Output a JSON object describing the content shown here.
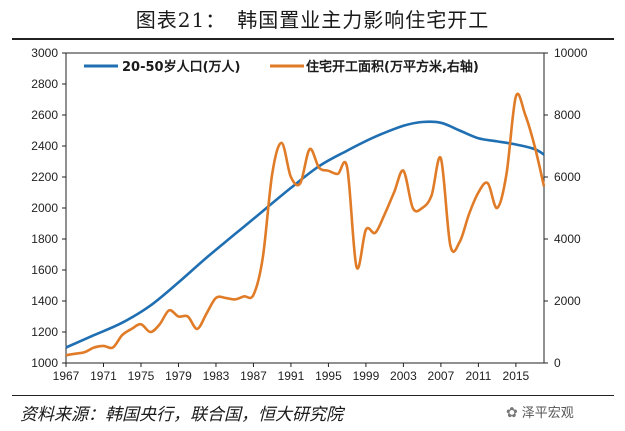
{
  "title": "图表21：　韩国置业主力影响住宅开工",
  "source": "资料来源：韩国央行，联合国，恒大研究院",
  "watermark": "泽平宏观",
  "chart_data": {
    "type": "line",
    "xlabel": "",
    "ylabel_left": "",
    "ylabel_right": "",
    "x_tick_labels": [
      "1967",
      "1971",
      "1975",
      "1979",
      "1983",
      "1987",
      "1991",
      "1995",
      "1999",
      "2003",
      "2007",
      "2011",
      "2015"
    ],
    "xlim": [
      1967,
      2018
    ],
    "ylim_left": [
      1000,
      3000
    ],
    "ylim_right": [
      0,
      10000
    ],
    "y_ticks_left": [
      1000,
      1200,
      1400,
      1600,
      1800,
      2000,
      2200,
      2400,
      2600,
      2800,
      3000
    ],
    "y_ticks_right": [
      0,
      2000,
      4000,
      6000,
      8000,
      10000
    ],
    "grid": false,
    "legend_placement": "top",
    "series": [
      {
        "name": "20-50岁人口(万人)",
        "axis": "left",
        "color": "#1f6fb2",
        "x": [
          1967,
          1970,
          1973,
          1976,
          1979,
          1982,
          1985,
          1988,
          1991,
          1994,
          1997,
          2000,
          2003,
          2005,
          2007,
          2009,
          2011,
          2013,
          2015,
          2017,
          2018
        ],
        "values": [
          1100,
          1180,
          1260,
          1370,
          1520,
          1680,
          1830,
          1980,
          2130,
          2270,
          2370,
          2460,
          2530,
          2555,
          2550,
          2500,
          2450,
          2430,
          2410,
          2380,
          2345
        ]
      },
      {
        "name": "住宅开工面积(万平方米,右轴)",
        "axis": "right",
        "color": "#e07b27",
        "x": [
          1967,
          1968,
          1969,
          1970,
          1971,
          1972,
          1973,
          1974,
          1975,
          1976,
          1977,
          1978,
          1979,
          1980,
          1981,
          1982,
          1983,
          1984,
          1985,
          1986,
          1987,
          1988,
          1989,
          1990,
          1991,
          1992,
          1993,
          1994,
          1995,
          1996,
          1997,
          1998,
          1999,
          2000,
          2001,
          2002,
          2003,
          2004,
          2005,
          2006,
          2007,
          2008,
          2009,
          2010,
          2011,
          2012,
          2013,
          2014,
          2015,
          2016,
          2017,
          2018
        ],
        "values": [
          250,
          300,
          350,
          500,
          550,
          500,
          900,
          1100,
          1250,
          1000,
          1250,
          1700,
          1500,
          1500,
          1100,
          1600,
          2100,
          2100,
          2050,
          2150,
          2200,
          3400,
          6100,
          7100,
          6000,
          5800,
          6900,
          6300,
          6200,
          6100,
          6300,
          3100,
          4300,
          4200,
          4800,
          5500,
          6200,
          5000,
          5000,
          5400,
          6600,
          3800,
          3900,
          4800,
          5500,
          5800,
          5000,
          6100,
          8600,
          8000,
          7000,
          5700
        ]
      }
    ]
  }
}
